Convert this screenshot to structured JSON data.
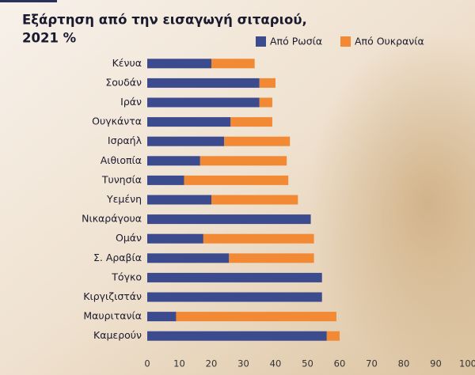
{
  "chart_data": {
    "type": "stacked-bar-horizontal",
    "title": [
      "Εξάρτηση από την εισαγωγή σιταριού,",
      "2021 %"
    ],
    "categories": [
      "Κένυα",
      "Σουδάν",
      "Ιράν",
      "Ουγκάντα",
      "Ισραήλ",
      "Αιθιοπία",
      "Τυνησία",
      "Υεμένη",
      "Νικαράγουα",
      "Ομάν",
      "Σ. Αραβία",
      "Τόγκο",
      "Κιργιζιστάν",
      "Μαυριτανία",
      "Καμερούν"
    ],
    "series": [
      {
        "name": "Από Ρωσία",
        "color": "#3c4a8e",
        "values": [
          20,
          35,
          35,
          26,
          24,
          16.5,
          11.5,
          20,
          51,
          17.5,
          25.5,
          54.5,
          54.5,
          9,
          56
        ]
      },
      {
        "name": "Από Ουκρανία",
        "color": "#f28a35",
        "values": [
          13.5,
          5,
          4,
          13,
          20.5,
          27,
          32.5,
          27,
          0,
          34.5,
          26.5,
          0,
          0,
          50,
          4
        ]
      }
    ],
    "xlim": [
      0,
      100
    ],
    "xticks": [
      0,
      10,
      20,
      30,
      40,
      50,
      60,
      70,
      80,
      90,
      100
    ]
  }
}
